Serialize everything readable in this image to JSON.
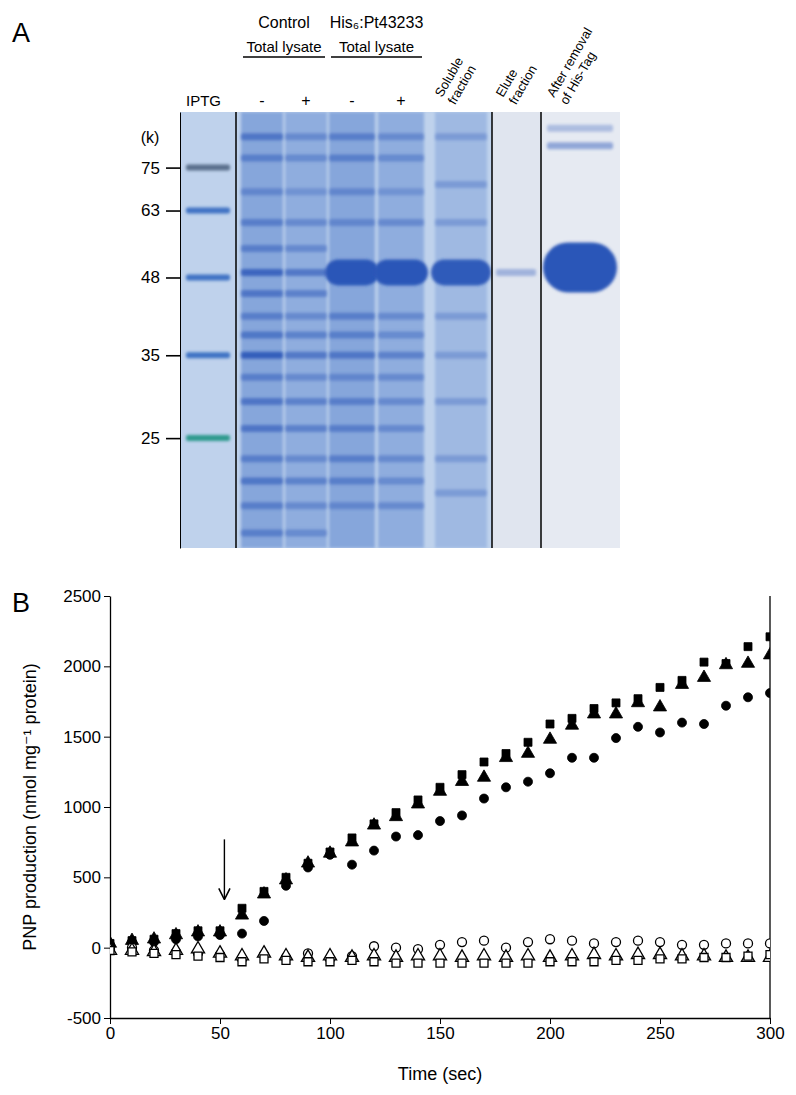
{
  "chart_data": [
    {
      "type": "gel",
      "panel_label": "A",
      "y_label": "(k)",
      "row_label": "IPTG",
      "log": "y",
      "ylim": [
        16,
        94
      ],
      "yticks": [
        75,
        63,
        48,
        35,
        25
      ],
      "color": "#2b56b8",
      "ladder": [
        {
          "kda": 75,
          "color": "#5a6f8c"
        },
        {
          "kda": 63,
          "color": "#3f73c4"
        },
        {
          "kda": 48,
          "color": "#3f73c4"
        },
        {
          "kda": 35,
          "color": "#3f73c4"
        },
        {
          "kda": 25,
          "color": "#2e9a8e"
        }
      ],
      "groups": [
        {
          "title": "Control",
          "subtitle": "Total lysate",
          "lanes": [
            {
              "label": "-",
              "bands": [
                {
                  "kda": 85,
                  "intensity": 0.6
                },
                {
                  "kda": 78,
                  "intensity": 0.5
                },
                {
                  "kda": 68,
                  "intensity": 0.4
                },
                {
                  "kda": 60,
                  "intensity": 0.5
                },
                {
                  "kda": 54,
                  "intensity": 0.5
                },
                {
                  "kda": 49,
                  "intensity": 0.8
                },
                {
                  "kda": 45,
                  "intensity": 0.6
                },
                {
                  "kda": 41,
                  "intensity": 0.5
                },
                {
                  "kda": 38,
                  "intensity": 0.6
                },
                {
                  "kda": 35,
                  "intensity": 0.9
                },
                {
                  "kda": 32,
                  "intensity": 0.5
                },
                {
                  "kda": 29,
                  "intensity": 0.6
                },
                {
                  "kda": 26,
                  "intensity": 0.6
                },
                {
                  "kda": 23,
                  "intensity": 0.5
                },
                {
                  "kda": 21,
                  "intensity": 0.6
                },
                {
                  "kda": 19,
                  "intensity": 0.5
                },
                {
                  "kda": 17,
                  "intensity": 0.5
                }
              ]
            },
            {
              "label": "+",
              "bands": [
                {
                  "kda": 85,
                  "intensity": 0.4
                },
                {
                  "kda": 78,
                  "intensity": 0.4
                },
                {
                  "kda": 68,
                  "intensity": 0.3
                },
                {
                  "kda": 60,
                  "intensity": 0.4
                },
                {
                  "kda": 54,
                  "intensity": 0.4
                },
                {
                  "kda": 49,
                  "intensity": 0.6
                },
                {
                  "kda": 45,
                  "intensity": 0.5
                },
                {
                  "kda": 41,
                  "intensity": 0.4
                },
                {
                  "kda": 38,
                  "intensity": 0.5
                },
                {
                  "kda": 35,
                  "intensity": 0.6
                },
                {
                  "kda": 32,
                  "intensity": 0.4
                },
                {
                  "kda": 29,
                  "intensity": 0.5
                },
                {
                  "kda": 26,
                  "intensity": 0.5
                },
                {
                  "kda": 23,
                  "intensity": 0.4
                },
                {
                  "kda": 21,
                  "intensity": 0.5
                },
                {
                  "kda": 19,
                  "intensity": 0.4
                },
                {
                  "kda": 17,
                  "intensity": 0.4
                }
              ]
            }
          ]
        },
        {
          "title": "His₆:Pt43233",
          "subtitle": "Total lysate",
          "lanes": [
            {
              "label": "-",
              "bands": [
                {
                  "kda": 85,
                  "intensity": 0.5
                },
                {
                  "kda": 78,
                  "intensity": 0.5
                },
                {
                  "kda": 68,
                  "intensity": 0.4
                },
                {
                  "kda": 60,
                  "intensity": 0.4
                },
                {
                  "kda": 49,
                  "intensity": 1.0
                },
                {
                  "kda": 41,
                  "intensity": 0.5
                },
                {
                  "kda": 38,
                  "intensity": 0.5
                },
                {
                  "kda": 35,
                  "intensity": 0.6
                },
                {
                  "kda": 32,
                  "intensity": 0.4
                },
                {
                  "kda": 29,
                  "intensity": 0.5
                },
                {
                  "kda": 26,
                  "intensity": 0.5
                },
                {
                  "kda": 23,
                  "intensity": 0.5
                },
                {
                  "kda": 21,
                  "intensity": 0.5
                },
                {
                  "kda": 19,
                  "intensity": 0.4
                }
              ]
            },
            {
              "label": "+",
              "bands": [
                {
                  "kda": 85,
                  "intensity": 0.4
                },
                {
                  "kda": 78,
                  "intensity": 0.4
                },
                {
                  "kda": 68,
                  "intensity": 0.3
                },
                {
                  "kda": 60,
                  "intensity": 0.4
                },
                {
                  "kda": 49,
                  "intensity": 1.0
                },
                {
                  "kda": 41,
                  "intensity": 0.4
                },
                {
                  "kda": 38,
                  "intensity": 0.4
                },
                {
                  "kda": 35,
                  "intensity": 0.5
                },
                {
                  "kda": 32,
                  "intensity": 0.4
                },
                {
                  "kda": 29,
                  "intensity": 0.4
                },
                {
                  "kda": 26,
                  "intensity": 0.4
                },
                {
                  "kda": 23,
                  "intensity": 0.4
                },
                {
                  "kda": 21,
                  "intensity": 0.4
                },
                {
                  "kda": 19,
                  "intensity": 0.4
                }
              ]
            }
          ]
        },
        {
          "title": [
            "Soluble",
            "fraction"
          ],
          "lanes": [
            {
              "bands": [
                {
                  "kda": 85,
                  "intensity": 0.3
                },
                {
                  "kda": 70,
                  "intensity": 0.3
                },
                {
                  "kda": 60,
                  "intensity": 0.3
                },
                {
                  "kda": 49,
                  "intensity": 0.95
                },
                {
                  "kda": 41,
                  "intensity": 0.3
                },
                {
                  "kda": 35,
                  "intensity": 0.3
                },
                {
                  "kda": 29,
                  "intensity": 0.3
                },
                {
                  "kda": 23,
                  "intensity": 0.3
                },
                {
                  "kda": 20,
                  "intensity": 0.3
                }
              ]
            }
          ]
        },
        {
          "title": [
            "Elute",
            "fraction"
          ],
          "lanes": [
            {
              "bands": [
                {
                  "kda": 49,
                  "intensity": 0.35
                }
              ]
            }
          ]
        },
        {
          "title": [
            "After removal",
            "of His-Tag"
          ],
          "lanes": [
            {
              "bands": [
                {
                  "kda": 88,
                  "intensity": 0.3
                },
                {
                  "kda": 82,
                  "intensity": 0.45
                },
                {
                  "kda": 50,
                  "intensity": 1.0
                }
              ]
            }
          ]
        }
      ]
    },
    {
      "type": "scatter",
      "panel_label": "B",
      "x_label": "Time (sec)",
      "y_label": "PNP production (nmol mg⁻¹ protein)",
      "x": [
        0,
        10,
        20,
        30,
        40,
        50,
        60,
        70,
        80,
        90,
        100,
        110,
        120,
        130,
        140,
        150,
        160,
        170,
        180,
        190,
        200,
        210,
        220,
        230,
        240,
        250,
        260,
        270,
        280,
        290,
        300
      ],
      "xlim": [
        0,
        300
      ],
      "xticks": [
        0,
        50,
        100,
        150,
        200,
        250,
        300
      ],
      "ylim": [
        -500,
        2500
      ],
      "yticks": [
        -500,
        0,
        500,
        1000,
        1500,
        2000,
        2500
      ],
      "series": [
        {
          "marker": "square",
          "color": "#000000",
          "values": [
            30,
            50,
            60,
            100,
            120,
            120,
            280,
            400,
            500,
            600,
            680,
            780,
            880,
            960,
            1050,
            1140,
            1230,
            1320,
            1380,
            1460,
            1590,
            1630,
            1700,
            1740,
            1770,
            1850,
            1900,
            2030,
            2020,
            2140,
            2210
          ]
        },
        {
          "marker": "triangle",
          "color": "#000000",
          "values": [
            30,
            50,
            60,
            90,
            110,
            110,
            230,
            380,
            480,
            600,
            670,
            750,
            870,
            930,
            1020,
            1110,
            1180,
            1210,
            1350,
            1380,
            1480,
            1580,
            1660,
            1660,
            1740,
            1710,
            1870,
            1920,
            2010,
            2020,
            2080
          ]
        },
        {
          "marker": "circle",
          "color": "#000000",
          "values": [
            20,
            40,
            40,
            60,
            80,
            90,
            100,
            190,
            440,
            570,
            660,
            590,
            690,
            790,
            800,
            900,
            940,
            1060,
            1140,
            1180,
            1240,
            1350,
            1350,
            1490,
            1570,
            1530,
            1600,
            1590,
            1720,
            1780,
            1810
          ]
        },
        {
          "marker": "circle-open",
          "color": "#000000",
          "values": [
            -10,
            0,
            -20,
            -30,
            -40,
            -50,
            -80,
            -50,
            -70,
            -40,
            -80,
            -60,
            10,
            0,
            -10,
            20,
            40,
            50,
            0,
            40,
            60,
            50,
            30,
            40,
            50,
            40,
            20,
            20,
            30,
            30,
            30
          ]
        },
        {
          "marker": "triangle-open",
          "color": "#000000",
          "values": [
            -20,
            -20,
            -30,
            -20,
            -10,
            -40,
            -60,
            -40,
            -60,
            -70,
            -60,
            -70,
            -60,
            -70,
            -60,
            -60,
            -70,
            -60,
            -70,
            -60,
            -70,
            -60,
            -50,
            -60,
            -50,
            -50,
            -60,
            -60,
            -70,
            -70,
            -70
          ]
        },
        {
          "marker": "square-open",
          "color": "#000000",
          "values": [
            -20,
            -30,
            -40,
            -50,
            -60,
            -70,
            -100,
            -80,
            -90,
            -100,
            -100,
            -90,
            -100,
            -110,
            -110,
            -110,
            -110,
            -110,
            -110,
            -110,
            -100,
            -100,
            -100,
            -90,
            -90,
            -80,
            -80,
            -70,
            -70,
            -60,
            -50
          ]
        }
      ],
      "annotations": [
        {
          "type": "arrow",
          "x": 52,
          "y": [
            770,
            350
          ]
        }
      ]
    }
  ]
}
